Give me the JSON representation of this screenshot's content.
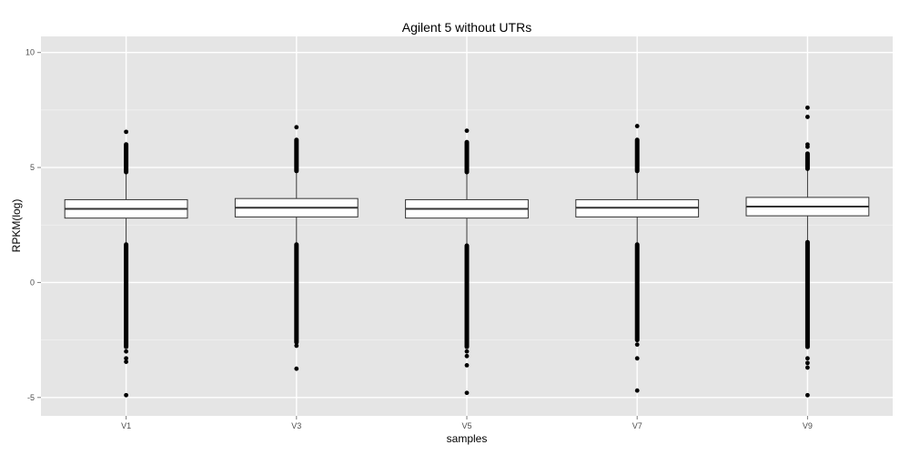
{
  "chart_data": {
    "type": "boxplot",
    "title": "Agilent 5 without UTRs",
    "xlabel": "samples",
    "ylabel": "RPKM(log)",
    "ylim": [
      -5.8,
      10.7
    ],
    "yticks": [
      -5,
      0,
      5,
      10
    ],
    "grid": true,
    "colors": {
      "panel": "#e5e5e5",
      "grid_major": "#ffffff",
      "grid_minor": "#f2f2f2",
      "box_fill": "#ffffff",
      "stroke": "#333333",
      "points": "#000000"
    },
    "categories": [
      "V1",
      "V3",
      "V5",
      "V7",
      "V9"
    ],
    "boxes": [
      {
        "name": "V1",
        "q1": 2.8,
        "median": 3.2,
        "q3": 3.6,
        "whisker_low": 1.65,
        "whisker_high": 4.8,
        "outliers_high_band": [
          4.8,
          6.0
        ],
        "outliers_low_band": [
          -2.8,
          1.65
        ],
        "outliers_extra": [
          6.55,
          -3.0,
          -3.3,
          -3.45,
          -4.9
        ]
      },
      {
        "name": "V3",
        "q1": 2.85,
        "median": 3.25,
        "q3": 3.65,
        "whisker_low": 1.65,
        "whisker_high": 4.85,
        "outliers_high_band": [
          4.85,
          6.2
        ],
        "outliers_low_band": [
          -2.6,
          1.65
        ],
        "outliers_extra": [
          6.75,
          -2.75,
          -3.75
        ]
      },
      {
        "name": "V5",
        "q1": 2.8,
        "median": 3.2,
        "q3": 3.6,
        "whisker_low": 1.6,
        "whisker_high": 4.8,
        "outliers_high_band": [
          4.8,
          6.1
        ],
        "outliers_low_band": [
          -2.8,
          1.6
        ],
        "outliers_extra": [
          6.6,
          -3.0,
          -3.2,
          -3.6,
          -4.8
        ]
      },
      {
        "name": "V7",
        "q1": 2.85,
        "median": 3.25,
        "q3": 3.6,
        "whisker_low": 1.65,
        "whisker_high": 4.85,
        "outliers_high_band": [
          4.85,
          6.2
        ],
        "outliers_low_band": [
          -2.5,
          1.65
        ],
        "outliers_extra": [
          6.8,
          -2.7,
          -3.3,
          -4.7
        ]
      },
      {
        "name": "V9",
        "q1": 2.9,
        "median": 3.3,
        "q3": 3.7,
        "whisker_low": 1.75,
        "whisker_high": 4.95,
        "outliers_high_band": [
          4.95,
          5.6
        ],
        "outliers_low_band": [
          -2.8,
          1.75
        ],
        "outliers_extra": [
          5.9,
          6.0,
          7.2,
          7.6,
          -3.3,
          -3.5,
          -3.7,
          -4.9
        ]
      }
    ]
  }
}
